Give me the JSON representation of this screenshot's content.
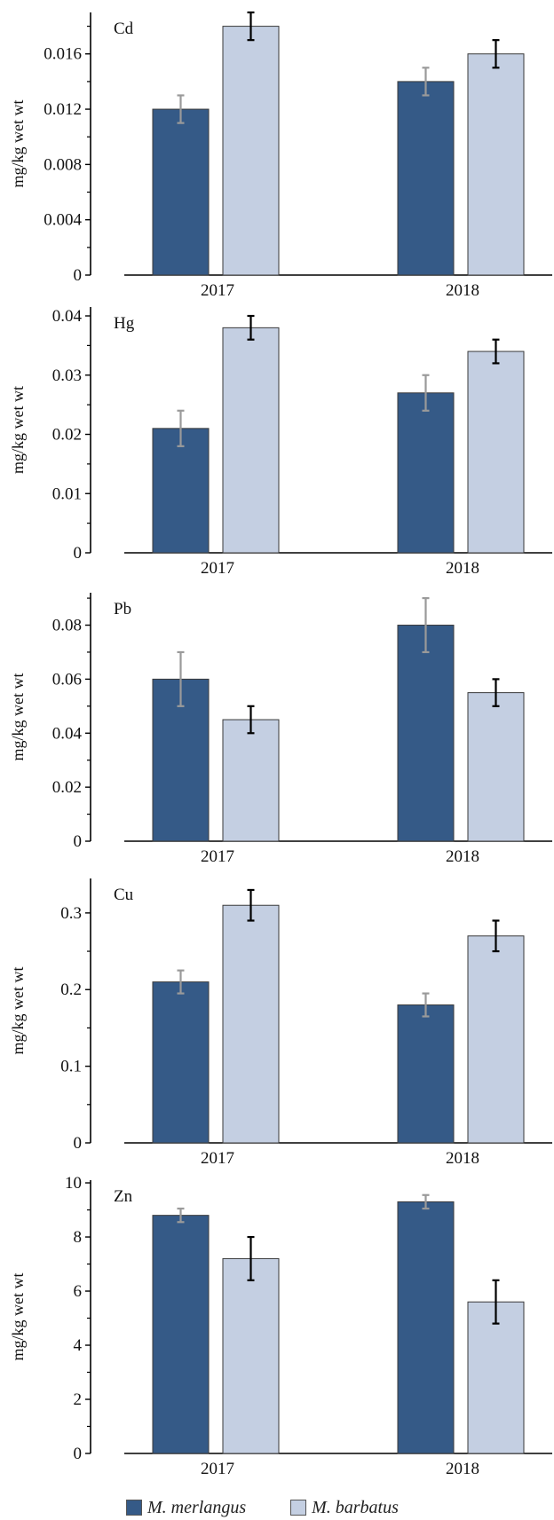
{
  "colors": {
    "merlangus": "#355a87",
    "barbatus": "#c4cfe2",
    "err_merlangus": "#9a9a9a",
    "err_barbatus": "#000000"
  },
  "legend": [
    {
      "name": "M. merlangus",
      "color": "#355a87"
    },
    {
      "name": "M. barbatus",
      "color": "#c4cfe2"
    }
  ],
  "chart_data": [
    {
      "type": "bar",
      "title": "Cd",
      "ylabel": "mg/kg wet wt",
      "categories": [
        "2017",
        "2018"
      ],
      "ylim": [
        0,
        0.019
      ],
      "yticks": [
        "0",
        "0.004",
        "0.008",
        "0.012",
        "0.016"
      ],
      "ytick_values": [
        0,
        0.004,
        0.008,
        0.012,
        0.016
      ],
      "series": [
        {
          "name": "M. merlangus",
          "values": [
            0.012,
            0.014
          ],
          "errors": [
            0.001,
            0.001
          ]
        },
        {
          "name": "M. barbatus",
          "values": [
            0.018,
            0.016
          ],
          "errors": [
            0.001,
            0.001
          ]
        }
      ]
    },
    {
      "type": "bar",
      "title": "Hg",
      "ylabel": "mg/kg wet wt",
      "categories": [
        "2017",
        "2018"
      ],
      "ylim": [
        0,
        0.0415
      ],
      "yticks": [
        "0",
        "0.01",
        "0.02",
        "0.03",
        "0.04"
      ],
      "ytick_values": [
        0,
        0.01,
        0.02,
        0.03,
        0.04
      ],
      "series": [
        {
          "name": "M. merlangus",
          "values": [
            0.021,
            0.027
          ],
          "errors": [
            0.003,
            0.003
          ]
        },
        {
          "name": "M. barbatus",
          "values": [
            0.038,
            0.034
          ],
          "errors": [
            0.002,
            0.002
          ]
        }
      ]
    },
    {
      "type": "bar",
      "title": "Pb",
      "ylabel": "mg/kg wet wt",
      "categories": [
        "2017",
        "2018"
      ],
      "ylim": [
        0,
        0.092
      ],
      "yticks": [
        "0",
        "0.02",
        "0.04",
        "0.06",
        "0.08"
      ],
      "ytick_values": [
        0,
        0.02,
        0.04,
        0.06,
        0.08
      ],
      "series": [
        {
          "name": "M. merlangus",
          "values": [
            0.06,
            0.08
          ],
          "errors": [
            0.01,
            0.01
          ]
        },
        {
          "name": "M. barbatus",
          "values": [
            0.045,
            0.055
          ],
          "errors": [
            0.005,
            0.005
          ]
        }
      ]
    },
    {
      "type": "bar",
      "title": "Cu",
      "ylabel": "mg/kg wet wt",
      "categories": [
        "2017",
        "2018"
      ],
      "ylim": [
        0,
        0.345
      ],
      "yticks": [
        "0",
        "0.1",
        "0.2",
        "0.3"
      ],
      "ytick_values": [
        0,
        0.1,
        0.2,
        0.3
      ],
      "series": [
        {
          "name": "M. merlangus",
          "values": [
            0.21,
            0.18
          ],
          "errors": [
            0.015,
            0.015
          ]
        },
        {
          "name": "M. barbatus",
          "values": [
            0.31,
            0.27
          ],
          "errors": [
            0.02,
            0.02
          ]
        }
      ]
    },
    {
      "type": "bar",
      "title": "Zn",
      "ylabel": "mg/kg wet wt",
      "categories": [
        "2017",
        "2018"
      ],
      "ylim": [
        0,
        10.1
      ],
      "yticks": [
        "0",
        "2",
        "4",
        "6",
        "8",
        "10"
      ],
      "ytick_values": [
        0,
        2,
        4,
        6,
        8,
        10
      ],
      "series": [
        {
          "name": "M. merlangus",
          "values": [
            8.8,
            9.3
          ],
          "errors": [
            0.25,
            0.25
          ]
        },
        {
          "name": "M. barbatus",
          "values": [
            7.2,
            5.6
          ],
          "errors": [
            0.8,
            0.8
          ]
        }
      ]
    }
  ]
}
